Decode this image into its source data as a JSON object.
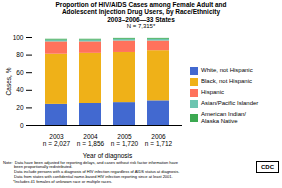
{
  "chart_data": {
    "type": "bar",
    "stacked": true,
    "title": "Proportion of HIV/AIDS Cases among Female Adult and\nAdolescent Injection Drug Users, by Race/Ethnicity\n2003–2006—33 States",
    "subtitle": "N = 7,315*",
    "xlabel": "Year of diagnosis",
    "ylabel": "Cases, %",
    "categories": [
      "2003",
      "2004",
      "2005",
      "2006"
    ],
    "series": [
      {
        "name": "White, not Hispanic",
        "values": [
          24,
          25,
          26,
          28
        ]
      },
      {
        "name": "Black, not Hispanic",
        "values": [
          57,
          57,
          57,
          57
        ]
      },
      {
        "name": "Hispanic",
        "values": [
          14,
          13,
          13,
          11
        ]
      },
      {
        "name": "Asian/Pacific Islander",
        "values": [
          2,
          2,
          2,
          2
        ]
      },
      {
        "name": "American Indian/\nAlaska Native",
        "values": [
          1,
          1,
          1,
          1
        ]
      }
    ],
    "ylim": [
      0,
      100
    ],
    "yticks": [
      0,
      20,
      40,
      60,
      80,
      100
    ],
    "grid": false,
    "legend": "right",
    "annotations": [
      {
        "x": "2003",
        "text": "n = 2,027"
      },
      {
        "x": "2004",
        "text": "n = 1,856"
      },
      {
        "x": "2005",
        "text": "n = 1,720"
      },
      {
        "x": "2006",
        "text": "n = 1,712"
      },
      {
        "text": "Note:  Data have been adjusted for reporting delays, and cases without risk factor information have\n          been proportionally redistributed.\n          Data include persons with a diagnosis of HIV infection regardless of AIDS status at diagnosis.\n          Data from states with confidential name-based HIV infection reporting since at least 2001.\n         *Includes 41 females of unknown race or multiple races."
      },
      {
        "text": "CDC"
      }
    ]
  }
}
